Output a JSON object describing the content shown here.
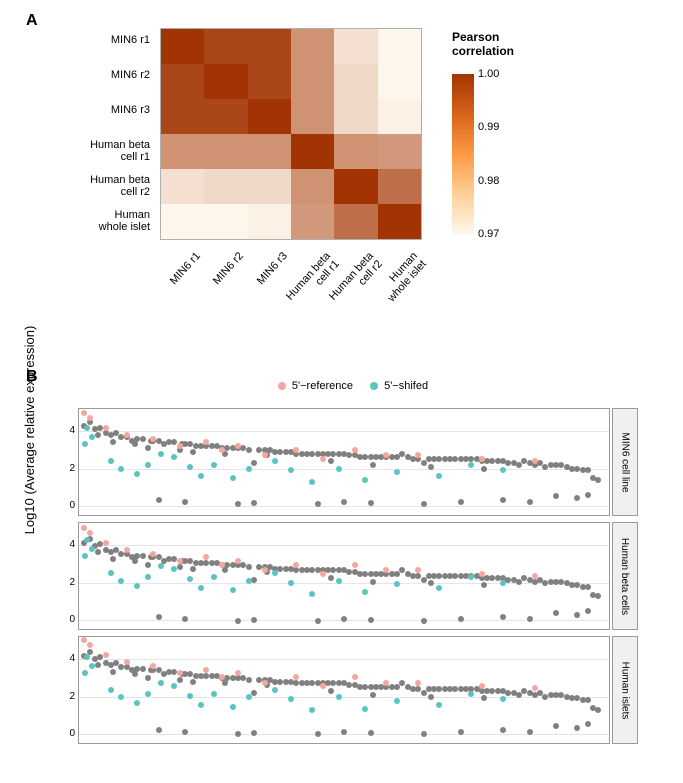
{
  "panelA": {
    "label": "A",
    "heatmap": {
      "type": "heatmap",
      "row_labels": [
        "MIN6 r1",
        "MIN6 r2",
        "MIN6 r3",
        "Human beta\ncell r1",
        "Human beta\ncell r2",
        "Human\nwhole islet"
      ],
      "col_labels": [
        "MIN6 r1",
        "MIN6 r2",
        "MIN6 r3",
        "Human beta\ncell r1",
        "Human beta\ncell r2",
        "Human\nwhole islet"
      ],
      "matrix": [
        [
          1.0,
          0.997,
          0.997,
          0.984,
          0.971,
          0.967
        ],
        [
          0.997,
          1.0,
          0.997,
          0.984,
          0.972,
          0.967
        ],
        [
          0.997,
          0.997,
          1.0,
          0.984,
          0.972,
          0.968
        ],
        [
          0.984,
          0.984,
          0.984,
          1.0,
          0.984,
          0.983
        ],
        [
          0.971,
          0.972,
          0.972,
          0.984,
          1.0,
          0.99
        ],
        [
          0.967,
          0.967,
          0.968,
          0.983,
          0.99,
          1.0
        ]
      ],
      "color_low": "#fff7ec",
      "color_high": "#a23403",
      "grid_color": "#ffffff",
      "label_fontsize": 11
    },
    "colorbar": {
      "title": "Pearson\ncorrelation",
      "title_fontsize": 12,
      "stops": [
        {
          "t": 0.0,
          "c": "#a23403"
        },
        {
          "t": 0.25,
          "c": "#d7631a"
        },
        {
          "t": 0.5,
          "c": "#fd9a42"
        },
        {
          "t": 0.75,
          "c": "#fed099"
        },
        {
          "t": 1.0,
          "c": "#fff7ec"
        }
      ],
      "ticks": [
        {
          "v": "1.00",
          "pos": 0.0
        },
        {
          "v": "0.99",
          "pos": 0.33
        },
        {
          "v": "0.98",
          "pos": 0.67
        },
        {
          "v": "0.97",
          "pos": 1.0
        }
      ],
      "tick_fontsize": 11
    }
  },
  "panelB": {
    "label": "B",
    "ylabel": "Log10 (Average relative expression)",
    "ylabel_fontsize": 13,
    "legend": [
      {
        "label": "5'−reference",
        "color": "#f4a6a0"
      },
      {
        "label": "5'−shifed",
        "color": "#5bc4bf"
      }
    ],
    "point_color_other": "#808080",
    "point_size": 6,
    "facets": [
      "MIN6 cell line",
      "Human beta cells",
      "Human islets"
    ],
    "ylim": [
      -0.5,
      5.2
    ],
    "yticks": [
      0,
      2,
      4
    ],
    "series": {
      "other": [
        [
          0.01,
          4.3
        ],
        [
          0.02,
          4.5
        ],
        [
          0.03,
          4.1
        ],
        [
          0.035,
          3.8
        ],
        [
          0.04,
          4.2
        ],
        [
          0.05,
          3.9
        ],
        [
          0.06,
          3.8
        ],
        [
          0.065,
          3.4
        ],
        [
          0.07,
          3.9
        ],
        [
          0.08,
          3.7
        ],
        [
          0.09,
          3.7
        ],
        [
          0.1,
          3.5
        ],
        [
          0.105,
          3.3
        ],
        [
          0.11,
          3.6
        ],
        [
          0.12,
          3.6
        ],
        [
          0.13,
          3.1
        ],
        [
          0.135,
          3.5
        ],
        [
          0.14,
          3.5
        ],
        [
          0.15,
          3.5
        ],
        [
          0.16,
          3.3
        ],
        [
          0.17,
          3.4
        ],
        [
          0.18,
          3.4
        ],
        [
          0.19,
          3.0
        ],
        [
          0.195,
          3.3
        ],
        [
          0.2,
          3.3
        ],
        [
          0.21,
          3.3
        ],
        [
          0.215,
          2.9
        ],
        [
          0.22,
          3.2
        ],
        [
          0.23,
          3.2
        ],
        [
          0.24,
          3.2
        ],
        [
          0.25,
          3.2
        ],
        [
          0.26,
          3.2
        ],
        [
          0.27,
          3.1
        ],
        [
          0.275,
          2.8
        ],
        [
          0.28,
          3.1
        ],
        [
          0.29,
          3.1
        ],
        [
          0.3,
          3.1
        ],
        [
          0.31,
          3.1
        ],
        [
          0.32,
          3.0
        ],
        [
          0.33,
          2.3
        ],
        [
          0.34,
          3.0
        ],
        [
          0.35,
          3.0
        ],
        [
          0.355,
          2.7
        ],
        [
          0.36,
          3.0
        ],
        [
          0.37,
          2.9
        ],
        [
          0.38,
          2.9
        ],
        [
          0.39,
          2.9
        ],
        [
          0.4,
          2.9
        ],
        [
          0.41,
          2.8
        ],
        [
          0.42,
          2.8
        ],
        [
          0.43,
          2.8
        ],
        [
          0.44,
          2.8
        ],
        [
          0.45,
          2.8
        ],
        [
          0.46,
          2.8
        ],
        [
          0.47,
          2.8
        ],
        [
          0.475,
          2.4
        ],
        [
          0.48,
          2.8
        ],
        [
          0.49,
          2.8
        ],
        [
          0.5,
          2.8
        ],
        [
          0.51,
          2.7
        ],
        [
          0.52,
          2.7
        ],
        [
          0.53,
          2.6
        ],
        [
          0.54,
          2.6
        ],
        [
          0.55,
          2.6
        ],
        [
          0.555,
          2.2
        ],
        [
          0.56,
          2.6
        ],
        [
          0.57,
          2.6
        ],
        [
          0.58,
          2.6
        ],
        [
          0.59,
          2.6
        ],
        [
          0.6,
          2.6
        ],
        [
          0.61,
          2.8
        ],
        [
          0.62,
          2.6
        ],
        [
          0.63,
          2.5
        ],
        [
          0.64,
          2.5
        ],
        [
          0.65,
          2.3
        ],
        [
          0.66,
          2.5
        ],
        [
          0.665,
          2.1
        ],
        [
          0.67,
          2.5
        ],
        [
          0.68,
          2.5
        ],
        [
          0.69,
          2.5
        ],
        [
          0.7,
          2.5
        ],
        [
          0.71,
          2.5
        ],
        [
          0.72,
          2.5
        ],
        [
          0.73,
          2.5
        ],
        [
          0.74,
          2.5
        ],
        [
          0.75,
          2.5
        ],
        [
          0.76,
          2.4
        ],
        [
          0.765,
          2.0
        ],
        [
          0.77,
          2.4
        ],
        [
          0.78,
          2.4
        ],
        [
          0.79,
          2.4
        ],
        [
          0.8,
          2.4
        ],
        [
          0.81,
          2.3
        ],
        [
          0.82,
          2.3
        ],
        [
          0.83,
          2.2
        ],
        [
          0.84,
          2.4
        ],
        [
          0.85,
          2.3
        ],
        [
          0.86,
          2.2
        ],
        [
          0.87,
          2.3
        ],
        [
          0.88,
          2.1
        ],
        [
          0.89,
          2.2
        ],
        [
          0.9,
          2.2
        ],
        [
          0.91,
          2.2
        ],
        [
          0.92,
          2.1
        ],
        [
          0.93,
          2.0
        ],
        [
          0.94,
          2.0
        ],
        [
          0.95,
          1.9
        ],
        [
          0.96,
          1.9
        ],
        [
          0.97,
          1.5
        ],
        [
          0.98,
          1.4
        ],
        [
          0.2,
          0.2
        ],
        [
          0.3,
          0.1
        ],
        [
          0.33,
          0.15
        ],
        [
          0.45,
          0.1
        ],
        [
          0.55,
          0.15
        ],
        [
          0.65,
          0.1
        ],
        [
          0.72,
          0.2
        ],
        [
          0.8,
          0.3
        ],
        [
          0.85,
          0.2
        ],
        [
          0.9,
          0.5
        ],
        [
          0.94,
          0.4
        ],
        [
          0.96,
          0.6
        ],
        [
          0.15,
          0.3
        ],
        [
          0.5,
          0.2
        ]
      ],
      "ref": [
        [
          0.01,
          5.0
        ],
        [
          0.02,
          4.7
        ],
        [
          0.05,
          4.2
        ],
        [
          0.09,
          3.8
        ],
        [
          0.14,
          3.6
        ],
        [
          0.19,
          3.2
        ],
        [
          0.24,
          3.4
        ],
        [
          0.27,
          3.0
        ],
        [
          0.3,
          3.2
        ],
        [
          0.35,
          2.7
        ],
        [
          0.41,
          3.0
        ],
        [
          0.46,
          2.5
        ],
        [
          0.52,
          3.0
        ],
        [
          0.58,
          2.7
        ],
        [
          0.64,
          2.7
        ],
        [
          0.76,
          2.5
        ],
        [
          0.86,
          2.4
        ]
      ],
      "shift": [
        [
          0.015,
          4.2
        ],
        [
          0.025,
          3.7
        ],
        [
          0.06,
          2.4
        ],
        [
          0.08,
          2.0
        ],
        [
          0.11,
          1.7
        ],
        [
          0.13,
          2.2
        ],
        [
          0.155,
          2.8
        ],
        [
          0.18,
          2.6
        ],
        [
          0.21,
          2.1
        ],
        [
          0.23,
          1.6
        ],
        [
          0.255,
          2.2
        ],
        [
          0.29,
          1.5
        ],
        [
          0.32,
          2.0
        ],
        [
          0.37,
          2.4
        ],
        [
          0.4,
          1.9
        ],
        [
          0.44,
          1.3
        ],
        [
          0.49,
          2.0
        ],
        [
          0.54,
          1.4
        ],
        [
          0.6,
          1.8
        ],
        [
          0.68,
          1.6
        ],
        [
          0.74,
          2.2
        ],
        [
          0.8,
          1.9
        ],
        [
          0.012,
          3.3
        ]
      ]
    },
    "facet_variation": [
      {
        "dy_other": 0.0,
        "dy_ref": 0.0,
        "dy_shift": 0.0
      },
      {
        "dy_other": -0.15,
        "dy_ref": -0.05,
        "dy_shift": 0.1
      },
      {
        "dy_other": -0.1,
        "dy_ref": 0.05,
        "dy_shift": -0.05
      }
    ],
    "background": "#ffffff",
    "grid_color": "#e5e5e5",
    "strip_bg": "#f0f0f0",
    "border_color": "#9a9a9a"
  }
}
